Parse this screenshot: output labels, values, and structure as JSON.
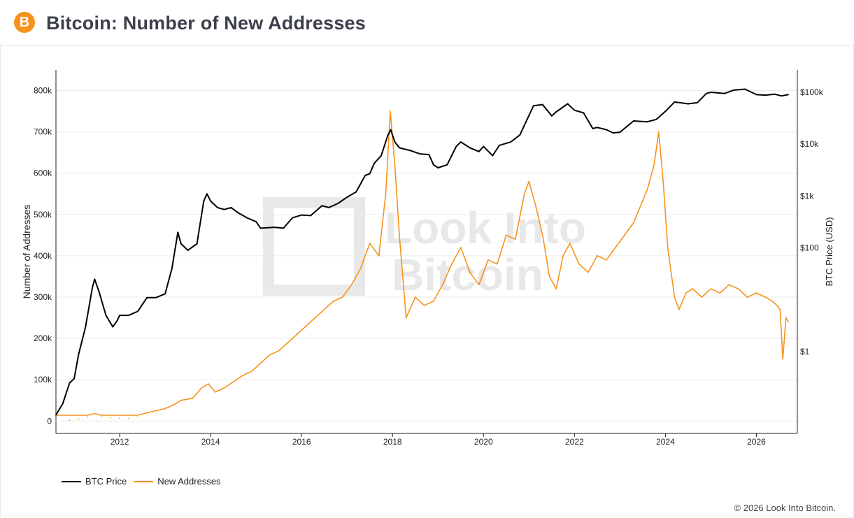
{
  "header": {
    "title": "Bitcoin: Number of New Addresses",
    "logo_icon": "bitcoin-logo-icon",
    "logo_glyph": "B"
  },
  "watermark": {
    "lines": [
      "Look Into",
      "Bitcoin"
    ]
  },
  "footer": {
    "copyright": "© 2026 Look Into Bitcoin."
  },
  "colors": {
    "btc_price": "#000000",
    "new_addresses": "#f7931a",
    "grid": "#ebebeb",
    "axis": "#222222"
  },
  "chart_data": {
    "type": "line",
    "title": "Bitcoin: Number of New Addresses",
    "xlabel": "",
    "ylabel": "Number of Addresses",
    "y2label": "BTC Price (USD)",
    "xlim": [
      2010.6,
      2026.9
    ],
    "ylim": [
      -30000,
      850000
    ],
    "y2_scale": "log",
    "y2_ticks": [
      1,
      100,
      1000,
      10000,
      100000
    ],
    "y2_tick_labels": [
      "$1",
      "$100",
      "$1k",
      "$10k",
      "$100k"
    ],
    "x_ticks": [
      2012,
      2014,
      2016,
      2018,
      2020,
      2022,
      2024,
      2026
    ],
    "x_tick_labels": [
      "2012",
      "2014",
      "2016",
      "2018",
      "2020",
      "2022",
      "2024",
      "2026"
    ],
    "y_ticks": [
      0,
      100000,
      200000,
      300000,
      400000,
      500000,
      600000,
      700000,
      800000
    ],
    "y_tick_labels": [
      "0",
      "100k",
      "200k",
      "300k",
      "400k",
      "500k",
      "600k",
      "700k",
      "800k"
    ],
    "grid": true,
    "legend_position": "bottom-left",
    "series": [
      {
        "name": "BTC Price",
        "axis": "y2",
        "x": [
          2010.6,
          2010.75,
          2010.9,
          2011.0,
          2011.1,
          2011.25,
          2011.4,
          2011.45,
          2011.55,
          2011.7,
          2011.85,
          2011.95,
          2012.0,
          2012.2,
          2012.4,
          2012.6,
          2012.8,
          2013.0,
          2013.15,
          2013.28,
          2013.35,
          2013.5,
          2013.7,
          2013.85,
          2013.92,
          2014.0,
          2014.15,
          2014.3,
          2014.45,
          2014.6,
          2014.8,
          2015.0,
          2015.1,
          2015.4,
          2015.6,
          2015.8,
          2016.0,
          2016.2,
          2016.45,
          2016.6,
          2016.8,
          2017.0,
          2017.2,
          2017.4,
          2017.5,
          2017.6,
          2017.75,
          2017.9,
          2017.96,
          2018.05,
          2018.15,
          2018.4,
          2018.6,
          2018.8,
          2018.9,
          2019.0,
          2019.2,
          2019.4,
          2019.5,
          2019.7,
          2019.9,
          2020.0,
          2020.2,
          2020.35,
          2020.6,
          2020.8,
          2020.95,
          2021.1,
          2021.3,
          2021.5,
          2021.6,
          2021.85,
          2022.0,
          2022.2,
          2022.4,
          2022.5,
          2022.7,
          2022.85,
          2023.0,
          2023.3,
          2023.6,
          2023.8,
          2024.0,
          2024.2,
          2024.5,
          2024.7,
          2024.9,
          2025.0,
          2025.3,
          2025.5,
          2025.75,
          2026.0,
          2026.2,
          2026.4,
          2026.55,
          2026.7
        ],
        "values": [
          0.06,
          0.1,
          0.25,
          0.3,
          0.9,
          3,
          17,
          25,
          14,
          5,
          3,
          4,
          5,
          5,
          6,
          11,
          11,
          13,
          40,
          200,
          120,
          90,
          120,
          800,
          1100,
          800,
          600,
          550,
          600,
          480,
          380,
          320,
          240,
          250,
          240,
          380,
          430,
          420,
          650,
          600,
          720,
          950,
          1200,
          2500,
          2700,
          4300,
          6000,
          15000,
          19000,
          11000,
          8500,
          7500,
          6500,
          6300,
          4000,
          3500,
          4000,
          9000,
          11000,
          8500,
          7200,
          9000,
          6000,
          9500,
          11000,
          15000,
          29000,
          55000,
          58000,
          35000,
          42000,
          60000,
          45000,
          40000,
          20000,
          21000,
          19000,
          16500,
          17000,
          28000,
          27000,
          30000,
          43000,
          65000,
          60000,
          63000,
          95000,
          100000,
          95000,
          110000,
          115000,
          90000,
          88000,
          92000,
          85000,
          90000
        ]
      },
      {
        "name": "New Addresses",
        "axis": "y",
        "x": [
          2010.6,
          2010.9,
          2011.1,
          2011.3,
          2011.45,
          2011.6,
          2011.8,
          2012.0,
          2012.2,
          2012.4,
          2012.6,
          2012.8,
          2013.0,
          2013.2,
          2013.35,
          2013.6,
          2013.8,
          2013.95,
          2014.1,
          2014.3,
          2014.5,
          2014.7,
          2014.9,
          2015.1,
          2015.3,
          2015.5,
          2015.7,
          2015.9,
          2016.1,
          2016.3,
          2016.5,
          2016.7,
          2016.9,
          2017.1,
          2017.3,
          2017.5,
          2017.7,
          2017.85,
          2017.95,
          2018.05,
          2018.15,
          2018.3,
          2018.5,
          2018.7,
          2018.9,
          2019.1,
          2019.3,
          2019.5,
          2019.7,
          2019.9,
          2020.1,
          2020.3,
          2020.5,
          2020.7,
          2020.9,
          2021.0,
          2021.15,
          2021.3,
          2021.45,
          2021.6,
          2021.75,
          2021.9,
          2022.1,
          2022.3,
          2022.5,
          2022.7,
          2022.9,
          2023.1,
          2023.3,
          2023.45,
          2023.6,
          2023.75,
          2023.85,
          2023.95,
          2024.05,
          2024.2,
          2024.3,
          2024.45,
          2024.6,
          2024.8,
          2025.0,
          2025.2,
          2025.4,
          2025.6,
          2025.8,
          2026.0,
          2026.2,
          2026.35,
          2026.45,
          2026.52,
          2026.58,
          2026.65,
          2026.7
        ],
        "values": [
          0,
          2000,
          5000,
          10000,
          18000,
          12000,
          8000,
          7000,
          6000,
          10000,
          20000,
          25000,
          30000,
          40000,
          50000,
          55000,
          80000,
          90000,
          70000,
          80000,
          95000,
          110000,
          120000,
          140000,
          160000,
          170000,
          190000,
          210000,
          230000,
          250000,
          270000,
          290000,
          300000,
          330000,
          370000,
          430000,
          400000,
          550000,
          750000,
          620000,
          450000,
          250000,
          300000,
          280000,
          290000,
          330000,
          380000,
          420000,
          360000,
          330000,
          390000,
          380000,
          450000,
          440000,
          550000,
          580000,
          520000,
          450000,
          350000,
          320000,
          400000,
          430000,
          380000,
          360000,
          400000,
          390000,
          420000,
          450000,
          480000,
          520000,
          560000,
          620000,
          700000,
          580000,
          420000,
          300000,
          270000,
          310000,
          320000,
          300000,
          320000,
          310000,
          330000,
          320000,
          300000,
          310000,
          300000,
          290000,
          280000,
          270000,
          150000,
          250000,
          240000
        ]
      }
    ]
  }
}
